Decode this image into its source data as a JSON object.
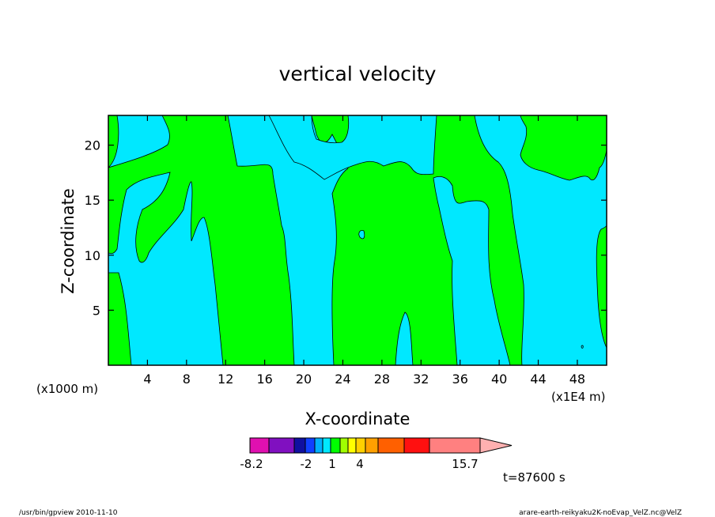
{
  "chart_data": {
    "type": "heatmap",
    "title": "vertical velocity",
    "xlabel": "X-coordinate",
    "ylabel": "Z-coordinate",
    "x_unit_left": "(x1000 m)",
    "x_unit_right": "(x1E4 m)",
    "xlim": [
      0,
      51
    ],
    "ylim": [
      0,
      22.7
    ],
    "x_ticks": [
      4,
      8,
      12,
      16,
      20,
      24,
      28,
      32,
      36,
      40,
      44,
      48
    ],
    "y_ticks": [
      5,
      10,
      15,
      20
    ],
    "time_label": "t=87600 s",
    "colorbar": {
      "tick_labels": [
        "-8.2",
        "-2",
        "1",
        "4",
        "15.7"
      ],
      "bins": [
        {
          "color": "#e010b0"
        },
        {
          "color": "#8010c0"
        },
        {
          "color": "#1010a0"
        },
        {
          "color": "#1040ff"
        },
        {
          "color": "#00b0ff"
        },
        {
          "color": "#00e8ff"
        },
        {
          "color": "#00ff00"
        },
        {
          "color": "#a0ff00"
        },
        {
          "color": "#ffff00"
        },
        {
          "color": "#ffd000"
        },
        {
          "color": "#ffa000"
        },
        {
          "color": "#ff6000"
        },
        {
          "color": "#ff1010"
        },
        {
          "color": "#ff8080"
        },
        {
          "color": "#ffb0b0"
        }
      ]
    },
    "fields": {
      "negative_color": "#00e8ff",
      "positive_color": "#00ff00"
    }
  },
  "footer": {
    "left": "/usr/bin/gpview   2010-11-10",
    "right": "arare-earth-reikyaku2K-noEvap_VelZ.nc@VelZ"
  }
}
